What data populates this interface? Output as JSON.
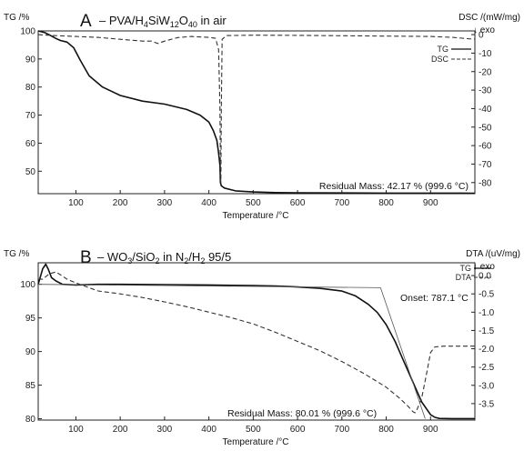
{
  "chart_data": [
    {
      "type": "line",
      "panel_letter": "A",
      "title_prefix": "– PVA/H",
      "title_sub1": "4",
      "title_mid": "SiW",
      "title_sub2": "12",
      "title_mid2": "O",
      "title_sub3": "40",
      "title_suffix": " in air",
      "ylabel": "TG /%",
      "y2label": "DSC /(mW/mg)",
      "exo_label": "↓ exo",
      "xlabel": "Temperature /°C",
      "xlim": [
        15,
        1000
      ],
      "ylim": [
        42,
        100
      ],
      "y2lim": [
        -86,
        2
      ],
      "xticks": [
        100,
        200,
        300,
        400,
        500,
        600,
        700,
        800,
        900
      ],
      "yticks": [
        50,
        60,
        70,
        80,
        90,
        100
      ],
      "y2ticks": [
        0,
        -10,
        -20,
        -30,
        -40,
        -50,
        -60,
        -70,
        -80
      ],
      "legend": [
        "TG",
        "DSC"
      ],
      "legend_position": "top-right",
      "annotation": "Residual Mass: 42.17 % (999.6 °C)",
      "series": [
        {
          "name": "TG",
          "axis": "left",
          "style": "solid",
          "x": [
            15,
            30,
            40,
            55,
            65,
            80,
            95,
            110,
            130,
            160,
            200,
            250,
            300,
            350,
            380,
            400,
            410,
            418,
            422,
            425,
            426,
            428,
            435,
            460,
            500,
            550,
            600,
            700,
            800,
            900,
            1000
          ],
          "y": [
            100,
            99.4,
            98.6,
            97.3,
            96.6,
            96.0,
            94.0,
            89.5,
            84.0,
            80.0,
            77.0,
            75.0,
            73.9,
            72.0,
            70.0,
            67.5,
            64.5,
            61.0,
            56.5,
            52.0,
            46.0,
            44.8,
            44.0,
            43.0,
            42.6,
            42.4,
            42.3,
            42.25,
            42.2,
            42.2,
            42.17
          ]
        },
        {
          "name": "DSC",
          "axis": "right",
          "style": "dashed",
          "x": [
            15,
            50,
            100,
            150,
            200,
            250,
            270,
            285,
            300,
            330,
            360,
            400,
            415,
            422,
            425,
            426,
            427,
            428,
            430,
            440,
            500,
            600,
            700,
            800,
            900,
            950,
            1000
          ],
          "y": [
            0,
            -0.5,
            -1.0,
            -1.5,
            -2.5,
            -3.5,
            -3.5,
            -4.8,
            -3.5,
            -1.6,
            -1.0,
            -1.5,
            -2.0,
            -8.0,
            -40.0,
            -76.0,
            -80.0,
            -40.0,
            -2.5,
            -0.5,
            -0.3,
            -0.4,
            -0.6,
            -0.8,
            -1.0,
            -1.5,
            -2.5
          ]
        }
      ]
    },
    {
      "type": "line",
      "panel_letter": "B",
      "title_prefix": "– WO",
      "title_sub1": "3",
      "title_mid": "/SiO",
      "title_sub2": "2",
      "title_mid2": " in N",
      "title_sub3": "2",
      "title_mid3": "/H",
      "title_sub4": "2",
      "title_suffix": " 95/5",
      "ylabel": "TG /%",
      "y2label": "DTA /(uV/mg)",
      "exo_label": "↓ exo",
      "xlabel": "Temperature /°C",
      "xlim": [
        15,
        1000
      ],
      "ylim": [
        79.8,
        103.2
      ],
      "y2lim": [
        -3.95,
        0.35
      ],
      "xticks": [
        100,
        200,
        300,
        400,
        500,
        600,
        700,
        800,
        900
      ],
      "yticks": [
        80,
        85,
        90,
        95,
        100
      ],
      "y2ticks": [
        0.0,
        -0.5,
        -1.0,
        -1.5,
        -2.0,
        -2.5,
        -3.0,
        -3.5
      ],
      "legend": [
        "TG",
        "DTA"
      ],
      "legend_position": "top-right",
      "annotation_onset": "Onset: 787.1 °C",
      "annotation": "Residual Mass: 80.01 % (999.6 °C)",
      "series": [
        {
          "name": "TG",
          "axis": "left",
          "style": "solid",
          "x": [
            15,
            25,
            32,
            38,
            45,
            55,
            70,
            100,
            150,
            200,
            300,
            400,
            500,
            550,
            600,
            650,
            700,
            730,
            760,
            780,
            800,
            820,
            840,
            860,
            880,
            900,
            910,
            920,
            950,
            1000
          ],
          "y": [
            100.0,
            102.3,
            103.0,
            102.2,
            101.0,
            100.5,
            100.0,
            99.9,
            100.0,
            100.0,
            99.95,
            99.9,
            99.8,
            99.75,
            99.6,
            99.4,
            99.0,
            98.3,
            97.0,
            95.8,
            94.0,
            91.5,
            88.5,
            85.5,
            82.5,
            80.6,
            80.2,
            80.05,
            80.02,
            80.01
          ]
        },
        {
          "name": "DTA",
          "axis": "right",
          "style": "dashed",
          "x": [
            15,
            25,
            40,
            55,
            68,
            80,
            100,
            150,
            200,
            250,
            300,
            350,
            400,
            450,
            500,
            550,
            600,
            650,
            700,
            750,
            800,
            830,
            850,
            860,
            865,
            870,
            880,
            890,
            900,
            910,
            930,
            1000
          ],
          "y": [
            -0.1,
            -0.1,
            0.05,
            0.1,
            0.0,
            -0.1,
            -0.2,
            -0.42,
            -0.5,
            -0.6,
            -0.72,
            -0.85,
            -1.0,
            -1.15,
            -1.32,
            -1.55,
            -1.8,
            -2.05,
            -2.35,
            -2.68,
            -3.05,
            -3.35,
            -3.58,
            -3.72,
            -3.75,
            -3.65,
            -3.35,
            -2.75,
            -2.1,
            -1.95,
            -1.93,
            -1.93
          ]
        },
        {
          "name": "onset-tangent-flat",
          "axis": "left",
          "style": "thin",
          "x": [
            15,
            787.1
          ],
          "y": [
            100.0,
            99.5
          ]
        },
        {
          "name": "onset-tangent-steep",
          "axis": "left",
          "style": "thin",
          "x": [
            787.1,
            888
          ],
          "y": [
            99.5,
            80.0
          ]
        }
      ]
    }
  ]
}
